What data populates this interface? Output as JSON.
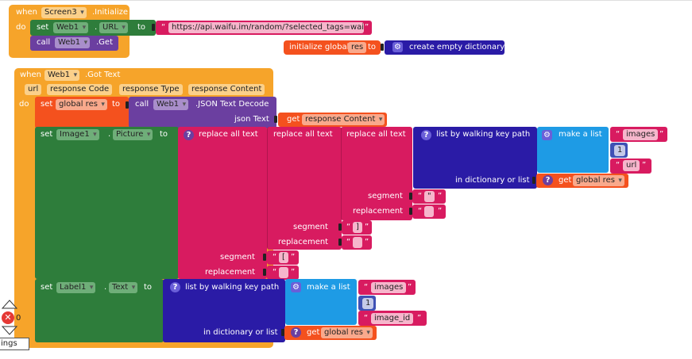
{
  "colors": {
    "event": "#F6A42A",
    "setter": "#2E7D3B",
    "method": "#6B3FA0",
    "text": "#D81B60",
    "global": "#F4511E",
    "list": "#8E24AA",
    "dict": "#2A1BA6",
    "dict_light": "#1E88E5",
    "math": "#3F51B5"
  },
  "screen_init": {
    "when": "when",
    "component": "Screen3",
    "event": ".Initialize",
    "do": "do",
    "set": "set",
    "target": "Web1",
    "dot": ".",
    "property": "URL",
    "to": "to",
    "url_value": "https://api.waifu.im/random/?selected_tags=waifu",
    "call": "call",
    "call_target": "Web1",
    "method": ".Get"
  },
  "init_global": {
    "label": "initialize global",
    "name": "res",
    "to": "to",
    "value": "create empty dictionary"
  },
  "got_text": {
    "when": "when",
    "component": "Web1",
    "event": ".Got Text",
    "params": [
      "url",
      "response Code",
      "response Type",
      "response Content"
    ],
    "do": "do"
  },
  "set_res": {
    "set": "set",
    "variable": "global res",
    "to": "to",
    "call": "call",
    "component": "Web1",
    "method": ".JSON Text Decode",
    "json_label": "json Text",
    "get": "get",
    "get_var": "response Content"
  },
  "set_picture": {
    "set": "set",
    "component": "Image1",
    "dot": ".",
    "property": "Picture",
    "to": "to",
    "replace": "replace all text",
    "walk": "list by walking key path",
    "make_list": "make a list",
    "items": [
      "images",
      "1",
      "url"
    ],
    "in_dict": "in dictionary or list",
    "get": "get",
    "get_var": "global res",
    "segment": "segment",
    "replacement": "replacement",
    "seg1": "\"",
    "rep1": "",
    "seg2": "]",
    "rep2": "",
    "seg3": "[",
    "rep3": ""
  },
  "set_label": {
    "set": "set",
    "component": "Label1",
    "dot": ".",
    "property": "Text",
    "to": "to",
    "walk": "list by walking key path",
    "make_list": "make a list",
    "items": [
      "images",
      "1",
      "image_id"
    ],
    "in_dict": "in dictionary or list",
    "get": "get",
    "get_var": "global res"
  },
  "warnings": {
    "count": "0",
    "label": "ings"
  },
  "quote_open": "“",
  "quote_close": "”"
}
